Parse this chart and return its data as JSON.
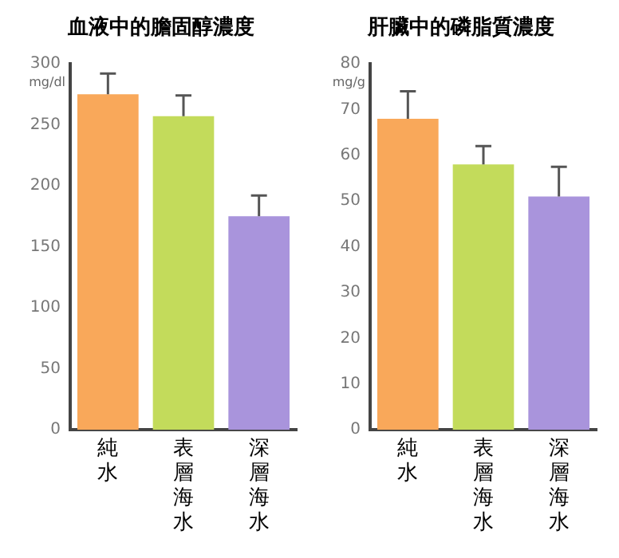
{
  "chart_data": [
    {
      "type": "bar",
      "title": "血液中的膽固醇濃度",
      "ylabel": "mg/dl",
      "categories": [
        "純水",
        "表層海水",
        "深層海水"
      ],
      "values": [
        275,
        257,
        175
      ],
      "colors": [
        "#f9a85a",
        "#c3db5b",
        "#a994dc"
      ],
      "errors": [
        [
          275,
          292
        ],
        [
          257,
          274
        ],
        [
          175,
          192
        ]
      ],
      "ylim": [
        0,
        300
      ],
      "yticks": [
        0,
        50,
        100,
        150,
        200,
        250,
        300
      ],
      "grid": false
    },
    {
      "type": "bar",
      "title": "肝臟中的磷脂質濃度",
      "ylabel": "mg/g",
      "categories": [
        "純水",
        "表層海水",
        "深層海水"
      ],
      "values": [
        68,
        58,
        51
      ],
      "colors": [
        "#f9a85a",
        "#c3db5b",
        "#a994dc"
      ],
      "errors": [
        [
          68,
          74
        ],
        [
          58,
          62
        ],
        [
          51,
          57.5
        ]
      ],
      "ylim": [
        0,
        80
      ],
      "yticks": [
        0,
        10,
        20,
        30,
        40,
        50,
        60,
        70,
        80
      ],
      "grid": false
    }
  ]
}
